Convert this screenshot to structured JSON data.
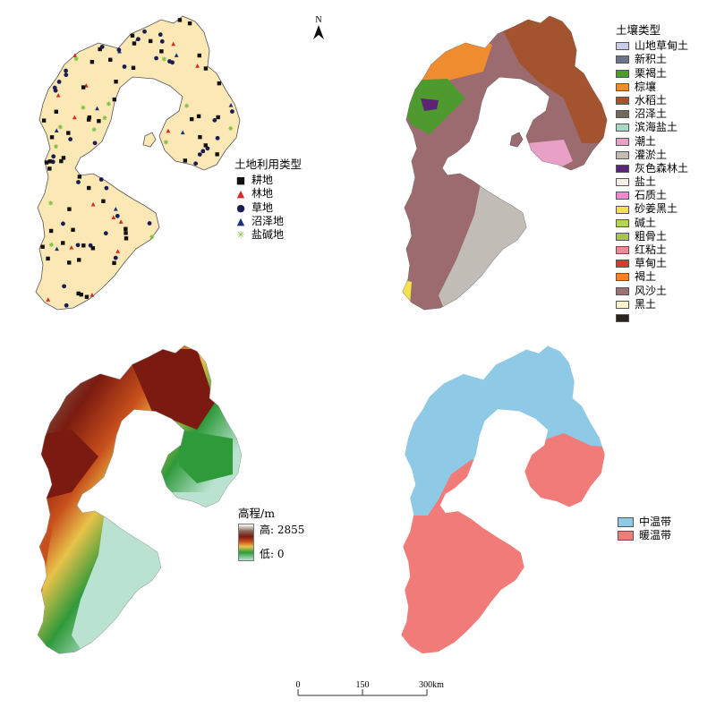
{
  "north_label": "N",
  "landuse": {
    "title": "土地利用类型",
    "items": [
      {
        "label": "耕地",
        "symbol": "■",
        "color": "#111111",
        "icon": "square-icon"
      },
      {
        "label": "林地",
        "symbol": "▲",
        "color": "#d42a2a",
        "icon": "triangle-icon"
      },
      {
        "label": "草地",
        "symbol": "●",
        "color": "#1c1c55",
        "icon": "circle-icon"
      },
      {
        "label": "沼泽地",
        "symbol": "▲",
        "color": "#1c2f7a",
        "icon": "triangle-icon"
      },
      {
        "label": "盐碱地",
        "symbol": "✳",
        "color": "#7bc043",
        "icon": "asterisk-icon"
      }
    ]
  },
  "soil": {
    "title": "土壤类型",
    "items": [
      {
        "label": "山地草甸土",
        "color": "#c9cde8"
      },
      {
        "label": "新积土",
        "color": "#6b7289"
      },
      {
        "label": "栗褐土",
        "color": "#4e9a2f"
      },
      {
        "label": "棕壤",
        "color": "#f08c30"
      },
      {
        "label": "水稻土",
        "color": "#a4532f"
      },
      {
        "label": "沼泽土",
        "color": "#736a5a"
      },
      {
        "label": "滨海盐土",
        "color": "#a9d9c4"
      },
      {
        "label": "潮土",
        "color": "#e9a0c6"
      },
      {
        "label": "灌淤土",
        "color": "#c3bcb5"
      },
      {
        "label": "灰色森林土",
        "color": "#5b2475"
      },
      {
        "label": "盐土",
        "color": "#f3eee8"
      },
      {
        "label": "石质土",
        "color": "#f08ad0"
      },
      {
        "label": "砂姜黑土",
        "color": "#f4e24a"
      },
      {
        "label": "碱土",
        "color": "#b7d45a"
      },
      {
        "label": "粗骨土",
        "color": "#a8c64a"
      },
      {
        "label": "红粘土",
        "color": "#f08a96"
      },
      {
        "label": "草甸土",
        "color": "#d93a2e"
      },
      {
        "label": "褐土",
        "color": "#f4812b"
      },
      {
        "label": "风沙土",
        "color": "#a07078"
      },
      {
        "label": "黑土",
        "color": "#fbf6c9"
      },
      {
        "label": "",
        "color": "#2a2420"
      }
    ]
  },
  "elevation": {
    "title": "高程/m",
    "high_label": "高: 2855",
    "low_label": "低: 0",
    "high_value": 2855,
    "low_value": 0
  },
  "climate": {
    "items": [
      {
        "label": "中温带",
        "color": "#8ecae6"
      },
      {
        "label": "暖温带",
        "color": "#f07b78"
      }
    ]
  },
  "scale": {
    "labels": [
      "0",
      "150",
      "300km"
    ]
  },
  "colors": {
    "region_fill": "#fbe8b5",
    "soil_main": "#9c6b6f",
    "soil_south": "#c2bcb6",
    "soil_north": "#a4532f",
    "dem_low": "#b9e3d0",
    "dem_mid": "#2f9a3a",
    "dem_high": "#7a1a10"
  }
}
